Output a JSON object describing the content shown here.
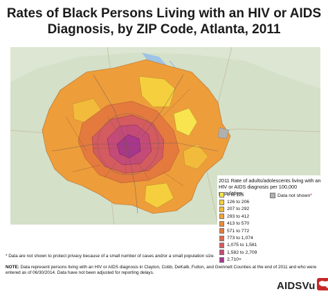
{
  "title": {
    "line1": "Rates of Black Persons Living with an HIV or AIDS",
    "line2": "Diagnosis, by ZIP Code, Atlanta, 2011"
  },
  "legend": {
    "title": "2011 Rate of adults/adolescents living with an HIV or AIDS diagnosis per 100,000 population.",
    "classes": [
      {
        "label": "0 to 125",
        "color": "#f7e44f"
      },
      {
        "label": "126 to 206",
        "color": "#f5cf3d"
      },
      {
        "label": "207 to 292",
        "color": "#f2bb3b"
      },
      {
        "label": "293 to 412",
        "color": "#efa33a"
      },
      {
        "label": "413 to 570",
        "color": "#ec8d3a"
      },
      {
        "label": "571 to 772",
        "color": "#e47a3e"
      },
      {
        "label": "773 to 1,074",
        "color": "#dd6a4c"
      },
      {
        "label": "1,075 to 1,581",
        "color": "#d45b60"
      },
      {
        "label": "1,582 to 2,709",
        "color": "#c44a78"
      },
      {
        "label": "2,710+",
        "color": "#a8368e"
      }
    ],
    "no_data_label": "Data not shown",
    "no_data_marker": "*",
    "no_data_color": "#b0b0b0"
  },
  "footnote": "* Data are not shown to protect privacy because of a small number of cases and/or a small population size.",
  "note": {
    "label": "NOTE:",
    "text": "Data represent persons living with an HIV or AIDS diagnosis in Clayton, Cobb, DeKalb, Fulton, and Gwinnett Counties at the end of 2011 and who were entered as of 06/30/2014. Data have not been adjusted for reporting delays."
  },
  "logo": {
    "text": "AIDSVu",
    "icon": "us-map-icon",
    "color": "#c62828"
  },
  "map_icon": "atlanta-zip-choropleth"
}
